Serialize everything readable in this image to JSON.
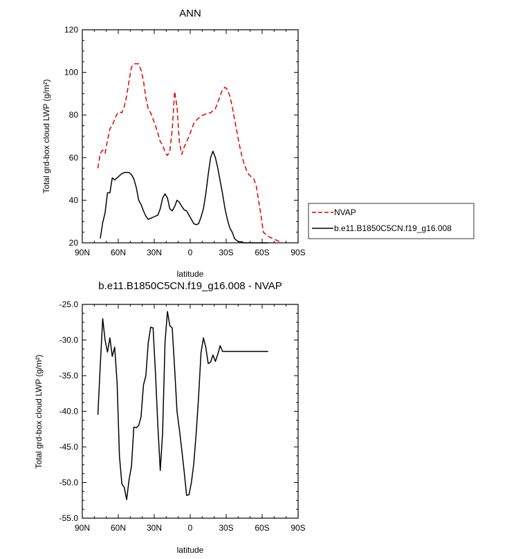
{
  "chart_data": [
    {
      "type": "line",
      "title": "ANN",
      "xlabel": "latitude",
      "ylabel": "Total grd-box cloud LWP (g/m²)",
      "ylim": [
        20,
        120
      ],
      "yticks": [
        20,
        40,
        60,
        80,
        100,
        120
      ],
      "xlim": [
        90,
        -90
      ],
      "xticks": [
        90,
        60,
        30,
        0,
        -30,
        -60,
        -90
      ],
      "xticklabels": [
        "90N",
        "60N",
        "30N",
        "0",
        "30S",
        "60S",
        "90S"
      ],
      "legend_position": "right",
      "series": [
        {
          "name": "NVAP",
          "color": "#dd0000",
          "dash": "dashed",
          "x": [
            77,
            75,
            73,
            71,
            69,
            67,
            65,
            63,
            61,
            59,
            57,
            55,
            53,
            51,
            49,
            47,
            45,
            43,
            41,
            39,
            37,
            35,
            33,
            31,
            29,
            27,
            25,
            23,
            21,
            19,
            17,
            15,
            13,
            11,
            9,
            7,
            5,
            3,
            1,
            -1,
            -3,
            -5,
            -7,
            -9,
            -11,
            -13,
            -15,
            -17,
            -19,
            -21,
            -23,
            -25,
            -27,
            -29,
            -31,
            -33,
            -35,
            -37,
            -39,
            -41,
            -43,
            -45,
            -47,
            -49,
            -51,
            -53,
            -55,
            -57,
            -59,
            -61,
            -63,
            -65,
            -67,
            -69,
            -71,
            -73,
            -75,
            -77
          ],
          "values": [
            55,
            62,
            63.5,
            62,
            68,
            73.5,
            75,
            78,
            80.5,
            81.5,
            81,
            84,
            89,
            96,
            102.5,
            104,
            104,
            104,
            101,
            96,
            88,
            83,
            81,
            78,
            75,
            71.5,
            67.5,
            66,
            62.5,
            61,
            63,
            73,
            91,
            84,
            67,
            61.5,
            65,
            67.5,
            70,
            73,
            76,
            77.5,
            78.5,
            79.5,
            80,
            80.5,
            81,
            81,
            82,
            83,
            86,
            89,
            92,
            93,
            92,
            89,
            84,
            78,
            72,
            66,
            61,
            57,
            54,
            52,
            51,
            50,
            47,
            40,
            33,
            25,
            24,
            23,
            22.5,
            22,
            21.5,
            21,
            20.5,
            20
          ]
        },
        {
          "name": "b.e11.B1850C5CN.f19_g16.008",
          "color": "#000000",
          "dash": "solid",
          "x": [
            75,
            73,
            71,
            69,
            67,
            65,
            63,
            61,
            59,
            57,
            55,
            53,
            51,
            49,
            47,
            45,
            43,
            41,
            39,
            37,
            35,
            33,
            31,
            29,
            27,
            25,
            23,
            21,
            19,
            17,
            15,
            13,
            11,
            9,
            7,
            5,
            3,
            1,
            -1,
            -3,
            -5,
            -7,
            -9,
            -11,
            -13,
            -15,
            -17,
            -19,
            -21,
            -23,
            -25,
            -27,
            -29,
            -31,
            -33,
            -35,
            -37,
            -39,
            -41,
            -43,
            -45,
            -47,
            -49,
            -51,
            -53,
            -55,
            -57,
            -59,
            -61,
            -63,
            -65
          ],
          "values": [
            22,
            29.5,
            34,
            43.5,
            43.5,
            50.5,
            49.5,
            50.5,
            51.5,
            52.5,
            53,
            53,
            53,
            52,
            50,
            46,
            40,
            38,
            35,
            32.5,
            31,
            31.5,
            32,
            32.5,
            33,
            36,
            41,
            43,
            41,
            36,
            35,
            37,
            40,
            39,
            37,
            35.5,
            35,
            33,
            31,
            29,
            28.5,
            29,
            32,
            36,
            43,
            52,
            60,
            63,
            60,
            55,
            49,
            43,
            36,
            31,
            27,
            25,
            22,
            21,
            20.5,
            20.5,
            20,
            20,
            20,
            20,
            20,
            20,
            20,
            20,
            20,
            20,
            20
          ]
        }
      ]
    },
    {
      "type": "line",
      "title": "b.e11.B1850C5CN.f19_g16.008 - NVAP",
      "xlabel": "latitude",
      "ylabel": "Total grd-box cloud LWP (g/m²)",
      "ylim": [
        -55,
        -25
      ],
      "yticks": [
        -55,
        -50,
        -45,
        -40,
        -35,
        -30,
        -25
      ],
      "yticklabels": [
        "-55.0",
        "-50.0",
        "-45.0",
        "-40.0",
        "-35.0",
        "-30.0",
        "-25.0"
      ],
      "xlim": [
        90,
        -90
      ],
      "xticks": [
        90,
        60,
        30,
        0,
        -30,
        -60,
        -90
      ],
      "xticklabels": [
        "90N",
        "60N",
        "30N",
        "0",
        "30S",
        "60S",
        "90S"
      ],
      "series": [
        {
          "color": "#000000",
          "dash": "solid",
          "x": [
            77,
            75,
            73,
            71,
            69,
            67,
            65,
            63,
            61,
            59,
            57,
            55,
            53,
            51,
            49,
            47,
            45,
            43,
            41,
            39,
            37,
            35,
            33,
            31,
            29,
            27,
            25,
            23,
            21,
            19,
            17,
            15,
            13,
            11,
            9,
            7,
            5,
            3,
            1,
            -1,
            -3,
            -5,
            -7,
            -9,
            -11,
            -13,
            -15,
            -17,
            -19,
            -21,
            -23,
            -25,
            -27,
            -29,
            -31,
            -33,
            -35,
            -37,
            -39,
            -41,
            -43,
            -45,
            -47,
            -49,
            -51,
            -53,
            -55,
            -57,
            -59,
            -61,
            -63,
            -65
          ],
          "values": [
            -40.5,
            -33.5,
            -27,
            -30,
            -31.7,
            -29.7,
            -32.3,
            -31,
            -36,
            -46.3,
            -50.2,
            -50.7,
            -52.4,
            -49.6,
            -47.7,
            -42.2,
            -42.3,
            -42,
            -40.8,
            -36.3,
            -35,
            -30.4,
            -28.2,
            -28.3,
            -34.5,
            -42,
            -48.3,
            -43,
            -30.3,
            -26,
            -28,
            -28.3,
            -34,
            -40,
            -42.6,
            -45.5,
            -48.5,
            -51.8,
            -51.7,
            -50,
            -47.3,
            -43,
            -38,
            -31.8,
            -29.7,
            -31,
            -33.3,
            -33.1,
            -32.1,
            -33,
            -32,
            -30.8,
            -31.6,
            -31.6,
            -31.6,
            -31.6,
            -31.6,
            -31.6,
            -31.6,
            -31.6,
            -31.6,
            -31.6,
            -31.6,
            -31.6,
            -31.6,
            -31.6,
            -31.6,
            -31.6,
            -31.6,
            -31.6,
            -31.6,
            -31.6
          ]
        }
      ]
    }
  ]
}
